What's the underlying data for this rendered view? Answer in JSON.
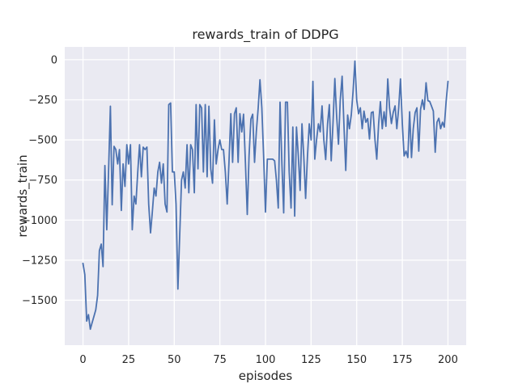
{
  "chart_data": {
    "type": "line",
    "title": "rewards_train of DDPG",
    "xlabel": "episodes",
    "ylabel": "rewards_train",
    "grid": true,
    "legend": "none",
    "xlim": [
      -10,
      210
    ],
    "ylim": [
      -1780,
      80
    ],
    "xticks": [
      0,
      25,
      50,
      75,
      100,
      125,
      150,
      175,
      200
    ],
    "yticks": [
      0,
      -250,
      -500,
      -750,
      -1000,
      -1250,
      -1500
    ],
    "style": {
      "plot_bg": "#eaeaf2",
      "fig_bg": "#ffffff",
      "grid_color": "#ffffff",
      "text_color": "#262626",
      "line_color": "#4c72b0",
      "line_width": 1.8
    },
    "series": [
      {
        "name": "rewards_train",
        "color": "#4c72b0",
        "x_start": 0,
        "x_step": 1,
        "values": [
          -1270,
          -1340,
          -1630,
          -1590,
          -1680,
          -1640,
          -1600,
          -1560,
          -1470,
          -1190,
          -1150,
          -1290,
          -660,
          -1060,
          -700,
          -290,
          -905,
          -540,
          -560,
          -650,
          -560,
          -940,
          -650,
          -790,
          -530,
          -650,
          -530,
          -1060,
          -850,
          -900,
          -700,
          -530,
          -730,
          -545,
          -560,
          -545,
          -900,
          -1080,
          -950,
          -800,
          -850,
          -700,
          -640,
          -770,
          -650,
          -900,
          -950,
          -280,
          -270,
          -700,
          -700,
          -900,
          -1430,
          -1100,
          -750,
          -700,
          -800,
          -530,
          -830,
          -530,
          -560,
          -830,
          -280,
          -680,
          -280,
          -300,
          -700,
          -280,
          -730,
          -290,
          -680,
          -770,
          -375,
          -650,
          -560,
          -500,
          -560,
          -560,
          -700,
          -900,
          -640,
          -337,
          -640,
          -337,
          -300,
          -640,
          -337,
          -450,
          -340,
          -640,
          -965,
          -600,
          -370,
          -340,
          -640,
          -450,
          -300,
          -125,
          -300,
          -600,
          -950,
          -620,
          -620,
          -620,
          -620,
          -630,
          -750,
          -925,
          -265,
          -650,
          -955,
          -265,
          -265,
          -700,
          -925,
          -420,
          -975,
          -420,
          -600,
          -815,
          -400,
          -600,
          -865,
          -600,
          -400,
          -500,
          -135,
          -620,
          -500,
          -400,
          -450,
          -288,
          -500,
          -622,
          -400,
          -280,
          -630,
          -400,
          -117,
          -350,
          -527,
          -250,
          -103,
          -400,
          -690,
          -345,
          -430,
          -345,
          -200,
          -8,
          -250,
          -337,
          -300,
          -430,
          -320,
          -390,
          -367,
          -494,
          -330,
          -325,
          -500,
          -620,
          -400,
          -262,
          -430,
          -325,
          -415,
          -120,
          -300,
          -398,
          -330,
          -288,
          -430,
          -300,
          -120,
          -400,
          -600,
          -570,
          -610,
          -325,
          -610,
          -430,
          -330,
          -300,
          -570,
          -310,
          -250,
          -310,
          -144,
          -255,
          -260,
          -290,
          -320,
          -577,
          -390,
          -365,
          -430,
          -390,
          -420,
          -260,
          -135
        ]
      }
    ]
  }
}
